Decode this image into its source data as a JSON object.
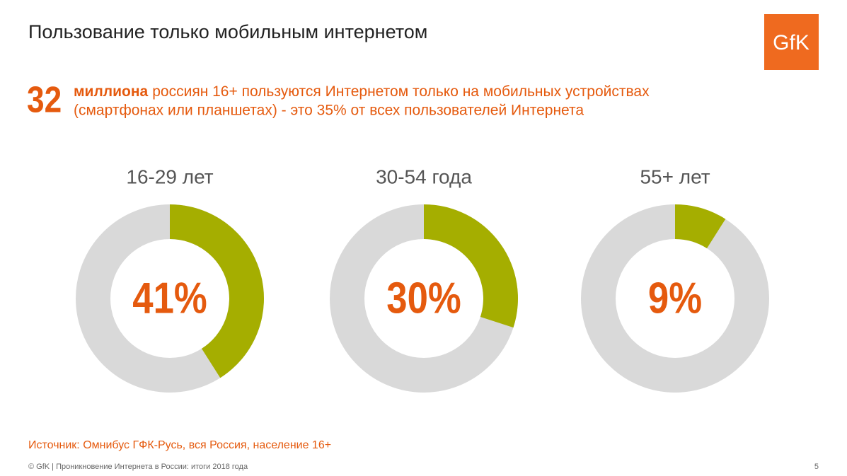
{
  "title": "Пользование только мобильным интернетом",
  "logo": "GfK",
  "headline": {
    "number": 32,
    "bold": "миллиона",
    "line1": "россиян 16+ пользуются Интернетом только на мобильных устройствах",
    "line2": "(смартфонах или планшетах) - это 35% от всех пользователей Интернета"
  },
  "chart_data": [
    {
      "type": "donut",
      "title": "16-29 лет",
      "values": [
        41
      ],
      "value_labels": [
        "41%"
      ],
      "color": "#a5ae00",
      "track_color": "#d9d9d9"
    },
    {
      "type": "donut",
      "title": "30-54 года",
      "values": [
        30
      ],
      "value_labels": [
        "30%"
      ],
      "color": "#a5ae00",
      "track_color": "#d9d9d9"
    },
    {
      "type": "donut",
      "title": "55+ лет",
      "values": [
        9
      ],
      "value_labels": [
        "9%"
      ],
      "color": "#a5ae00",
      "track_color": "#d9d9d9"
    }
  ],
  "source": "Источник: Омнибус ГФК-Русь, вся Россия, население 16+",
  "footer": "© GfK | Проникновение Интернета в России: итоги 2018 года",
  "page": "5"
}
